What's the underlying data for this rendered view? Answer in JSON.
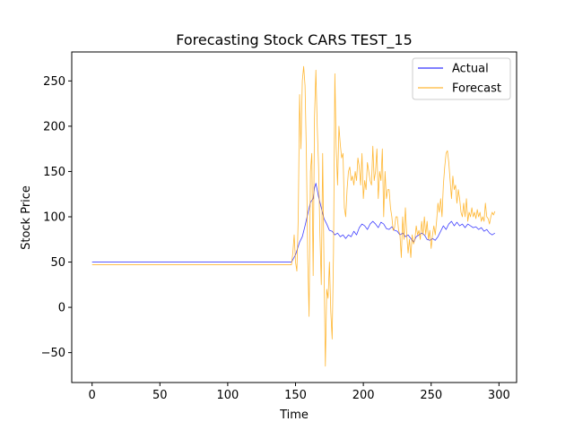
{
  "chart_data": {
    "type": "line",
    "title": "Forecasting Stock CARS TEST_15",
    "xlabel": "Time",
    "ylabel": "Stock Price",
    "xlim": [
      -15,
      313
    ],
    "ylim": [
      -83,
      282
    ],
    "xticks": [
      0,
      50,
      100,
      150,
      200,
      250,
      300
    ],
    "yticks": [
      -50,
      0,
      50,
      100,
      150,
      200,
      250
    ],
    "grid": false,
    "legend_position": "top-right",
    "series": [
      {
        "name": "Actual",
        "color": "#0000ff",
        "points": [
          [
            0,
            50
          ],
          [
            147,
            50
          ],
          [
            150,
            58
          ],
          [
            153,
            72
          ],
          [
            155,
            78
          ],
          [
            157,
            90
          ],
          [
            159,
            103
          ],
          [
            161,
            116
          ],
          [
            163,
            120
          ],
          [
            164,
            132
          ],
          [
            165,
            137
          ],
          [
            167,
            122
          ],
          [
            169,
            110
          ],
          [
            171,
            98
          ],
          [
            173,
            92
          ],
          [
            175,
            85
          ],
          [
            177,
            84
          ],
          [
            179,
            80
          ],
          [
            181,
            82
          ],
          [
            183,
            78
          ],
          [
            185,
            80
          ],
          [
            187,
            76
          ],
          [
            189,
            80
          ],
          [
            191,
            78
          ],
          [
            193,
            84
          ],
          [
            195,
            80
          ],
          [
            197,
            88
          ],
          [
            199,
            92
          ],
          [
            201,
            90
          ],
          [
            203,
            86
          ],
          [
            205,
            92
          ],
          [
            207,
            95
          ],
          [
            209,
            92
          ],
          [
            211,
            88
          ],
          [
            213,
            94
          ],
          [
            215,
            92
          ],
          [
            217,
            87
          ],
          [
            219,
            86
          ],
          [
            221,
            89
          ],
          [
            223,
            85
          ],
          [
            225,
            84
          ],
          [
            227,
            80
          ],
          [
            229,
            82
          ],
          [
            231,
            78
          ],
          [
            233,
            80
          ],
          [
            235,
            76
          ],
          [
            237,
            72
          ],
          [
            239,
            78
          ],
          [
            241,
            80
          ],
          [
            243,
            82
          ],
          [
            245,
            80
          ],
          [
            247,
            75
          ],
          [
            249,
            74
          ],
          [
            251,
            76
          ],
          [
            253,
            74
          ],
          [
            255,
            78
          ],
          [
            257,
            84
          ],
          [
            259,
            90
          ],
          [
            261,
            86
          ],
          [
            263,
            92
          ],
          [
            265,
            95
          ],
          [
            267,
            90
          ],
          [
            269,
            94
          ],
          [
            271,
            90
          ],
          [
            273,
            92
          ],
          [
            275,
            88
          ],
          [
            277,
            92
          ],
          [
            279,
            90
          ],
          [
            281,
            88
          ],
          [
            283,
            89
          ],
          [
            285,
            86
          ],
          [
            287,
            88
          ],
          [
            289,
            84
          ],
          [
            291,
            86
          ],
          [
            293,
            82
          ],
          [
            295,
            80
          ],
          [
            297,
            82
          ]
        ]
      },
      {
        "name": "Forecast",
        "color": "#ffa500",
        "points": [
          [
            0,
            47
          ],
          [
            147,
            47
          ],
          [
            148,
            60
          ],
          [
            149,
            80
          ],
          [
            150,
            50
          ],
          [
            151,
            40
          ],
          [
            152,
            100
          ],
          [
            153,
            235
          ],
          [
            154,
            175
          ],
          [
            155,
            250
          ],
          [
            156,
            266
          ],
          [
            157,
            245
          ],
          [
            158,
            170
          ],
          [
            159,
            55
          ],
          [
            160,
            -10
          ],
          [
            161,
            150
          ],
          [
            162,
            170
          ],
          [
            163,
            35
          ],
          [
            164,
            210
          ],
          [
            165,
            262
          ],
          [
            166,
            200
          ],
          [
            167,
            155
          ],
          [
            168,
            80
          ],
          [
            169,
            25
          ],
          [
            170,
            170
          ],
          [
            171,
            45
          ],
          [
            172,
            -65
          ],
          [
            173,
            20
          ],
          [
            174,
            10
          ],
          [
            175,
            50
          ],
          [
            176,
            -5
          ],
          [
            177,
            -35
          ],
          [
            178,
            60
          ],
          [
            179,
            258
          ],
          [
            180,
            175
          ],
          [
            181,
            135
          ],
          [
            182,
            200
          ],
          [
            183,
            180
          ],
          [
            184,
            165
          ],
          [
            185,
            170
          ],
          [
            186,
            110
          ],
          [
            187,
            100
          ],
          [
            188,
            130
          ],
          [
            189,
            150
          ],
          [
            190,
            155
          ],
          [
            191,
            140
          ],
          [
            192,
            145
          ],
          [
            193,
            135
          ],
          [
            194,
            150
          ],
          [
            195,
            140
          ],
          [
            196,
            165
          ],
          [
            197,
            155
          ],
          [
            198,
            135
          ],
          [
            199,
            170
          ],
          [
            200,
            120
          ],
          [
            201,
            140
          ],
          [
            202,
            130
          ],
          [
            203,
            160
          ],
          [
            204,
            150
          ],
          [
            205,
            140
          ],
          [
            206,
            135
          ],
          [
            207,
            178
          ],
          [
            208,
            140
          ],
          [
            209,
            150
          ],
          [
            210,
            175
          ],
          [
            211,
            120
          ],
          [
            212,
            150
          ],
          [
            213,
            140
          ],
          [
            214,
            175
          ],
          [
            215,
            100
          ],
          [
            216,
            150
          ],
          [
            217,
            120
          ],
          [
            218,
            130
          ],
          [
            219,
            130
          ],
          [
            220,
            110
          ],
          [
            221,
            100
          ],
          [
            222,
            85
          ],
          [
            223,
            88
          ],
          [
            224,
            100
          ],
          [
            225,
            100
          ],
          [
            226,
            85
          ],
          [
            227,
            80
          ],
          [
            228,
            55
          ],
          [
            229,
            100
          ],
          [
            230,
            75
          ],
          [
            231,
            110
          ],
          [
            232,
            80
          ],
          [
            233,
            60
          ],
          [
            234,
            75
          ],
          [
            235,
            55
          ],
          [
            236,
            80
          ],
          [
            237,
            70
          ],
          [
            238,
            75
          ],
          [
            239,
            90
          ],
          [
            240,
            80
          ],
          [
            241,
            85
          ],
          [
            242,
            75
          ],
          [
            243,
            95
          ],
          [
            244,
            80
          ],
          [
            245,
            100
          ],
          [
            246,
            80
          ],
          [
            247,
            95
          ],
          [
            248,
            75
          ],
          [
            249,
            85
          ],
          [
            250,
            65
          ],
          [
            251,
            80
          ],
          [
            252,
            90
          ],
          [
            253,
            80
          ],
          [
            254,
            95
          ],
          [
            255,
            115
          ],
          [
            256,
            105
          ],
          [
            257,
            120
          ],
          [
            258,
            100
          ],
          [
            259,
            135
          ],
          [
            260,
            155
          ],
          [
            261,
            170
          ],
          [
            262,
            173
          ],
          [
            263,
            160
          ],
          [
            264,
            140
          ],
          [
            265,
            120
          ],
          [
            266,
            145
          ],
          [
            267,
            130
          ],
          [
            268,
            135
          ],
          [
            269,
            115
          ],
          [
            270,
            130
          ],
          [
            271,
            120
          ],
          [
            272,
            105
          ],
          [
            273,
            100
          ],
          [
            274,
            115
          ],
          [
            275,
            100
          ],
          [
            276,
            120
          ],
          [
            277,
            95
          ],
          [
            278,
            105
          ],
          [
            279,
            100
          ],
          [
            280,
            110
          ],
          [
            281,
            100
          ],
          [
            282,
            105
          ],
          [
            283,
            98
          ],
          [
            284,
            108
          ],
          [
            285,
            100
          ],
          [
            286,
            105
          ],
          [
            287,
            95
          ],
          [
            288,
            100
          ],
          [
            289,
            95
          ],
          [
            290,
            115
          ],
          [
            291,
            100
          ],
          [
            292,
            98
          ],
          [
            293,
            92
          ],
          [
            294,
            100
          ],
          [
            295,
            105
          ],
          [
            296,
            102
          ],
          [
            297,
            106
          ]
        ]
      }
    ]
  }
}
